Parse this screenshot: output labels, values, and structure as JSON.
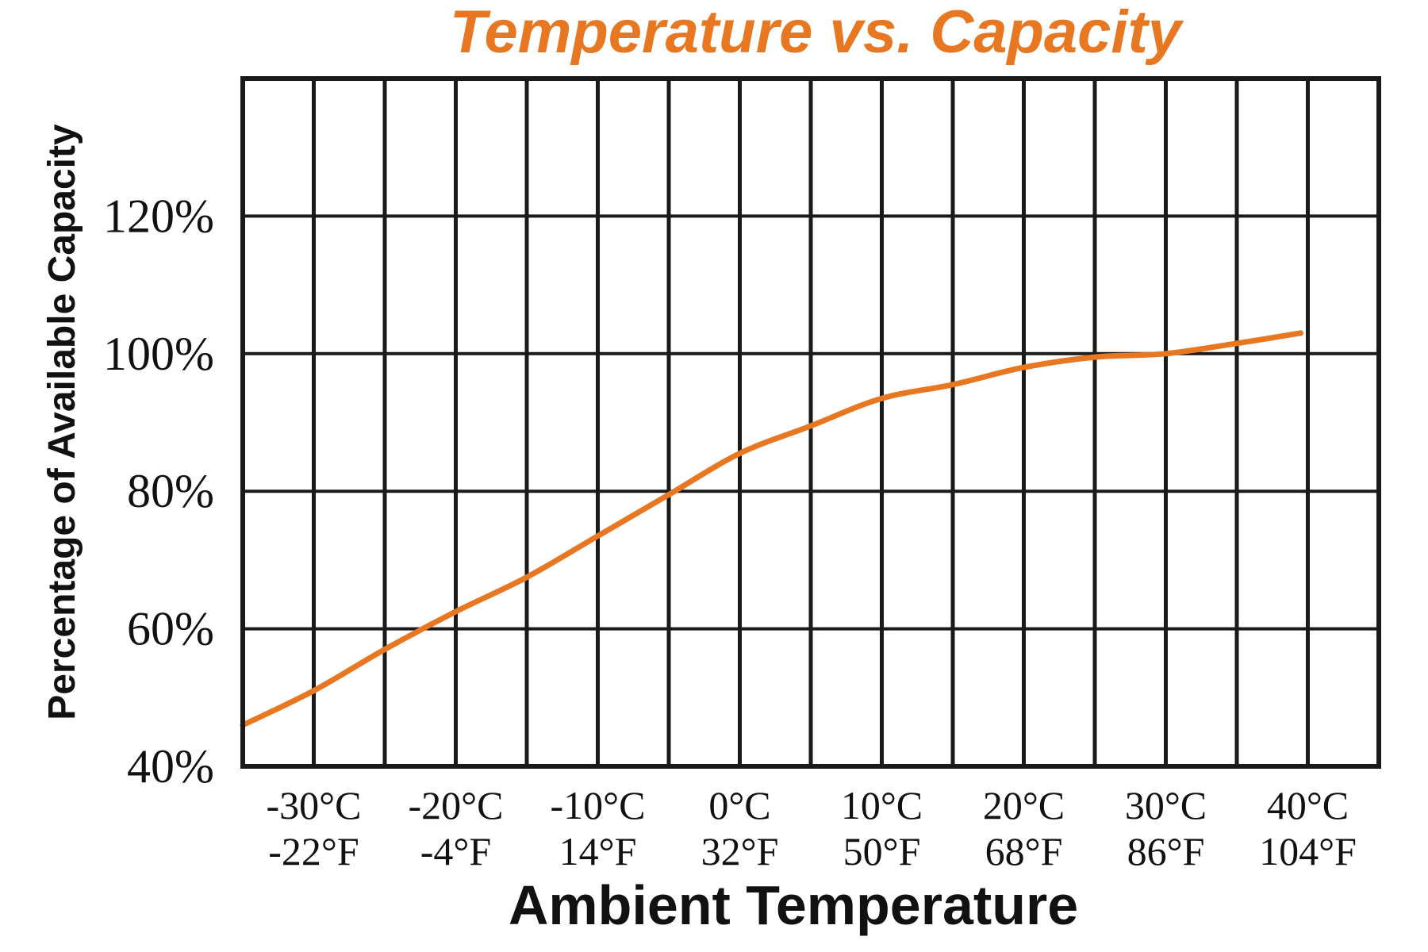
{
  "chart_data": {
    "type": "line",
    "title": "Temperature vs. Capacity",
    "xlabel": "Ambient Temperature",
    "ylabel": "Percentage of Available Capacity",
    "x_unit": "°C",
    "xlim": [
      -35,
      45
    ],
    "ylim": [
      40,
      140
    ],
    "x_ticks": [
      {
        "value": -30,
        "label_c": "-30°C",
        "label_f": "-22°F"
      },
      {
        "value": -20,
        "label_c": "-20°C",
        "label_f": "-4°F"
      },
      {
        "value": -10,
        "label_c": "-10°C",
        "label_f": "14°F"
      },
      {
        "value": 0,
        "label_c": "0°C",
        "label_f": "32°F"
      },
      {
        "value": 10,
        "label_c": "10°C",
        "label_f": "50°F"
      },
      {
        "value": 20,
        "label_c": "20°C",
        "label_f": "68°F"
      },
      {
        "value": 30,
        "label_c": "30°C",
        "label_f": "86°F"
      },
      {
        "value": 40,
        "label_c": "40°C",
        "label_f": "104°F"
      }
    ],
    "y_ticks": [
      {
        "value": 40,
        "label": "40%"
      },
      {
        "value": 60,
        "label": "60%"
      },
      {
        "value": 80,
        "label": "80%"
      },
      {
        "value": 100,
        "label": "100%"
      },
      {
        "value": 120,
        "label": "120%"
      }
    ],
    "x_grid_step": 5,
    "y_grid_step": 20,
    "grid": true,
    "series": [
      {
        "color": "#E87722",
        "x": [
          -35,
          -30,
          -25,
          -20,
          -15,
          -10,
          -5,
          0,
          5,
          10,
          15,
          20,
          25,
          30,
          35,
          39.5
        ],
        "y": [
          46,
          51,
          57,
          62.5,
          67.5,
          73.5,
          79.5,
          85.5,
          89.5,
          93.5,
          95.5,
          98,
          99.5,
          100,
          101.5,
          103
        ]
      }
    ],
    "colors": {
      "title": "#E87722",
      "line": "#E87722",
      "grid": "#1a1a1a",
      "text": "#111111"
    }
  }
}
